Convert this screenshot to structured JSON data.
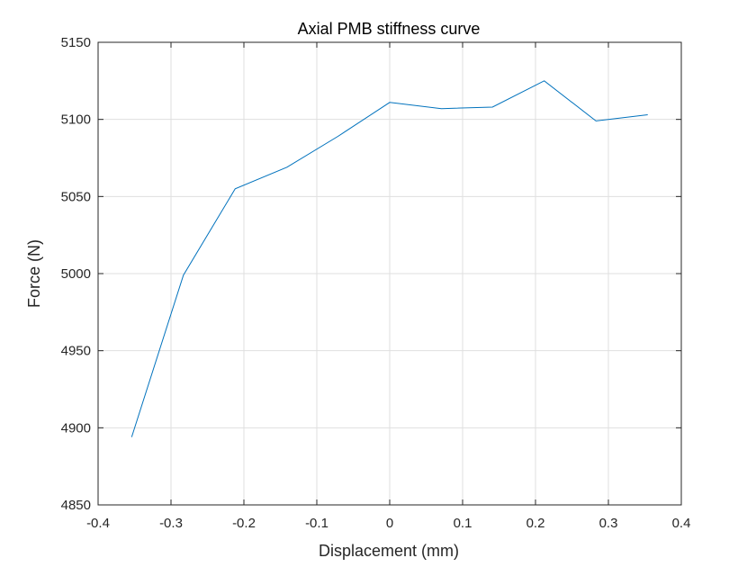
{
  "chart_data": {
    "type": "line",
    "title": "Axial PMB stiffness curve",
    "xlabel": "Displacement (mm)",
    "ylabel": "Force (N)",
    "xlim": [
      -0.4,
      0.4
    ],
    "ylim": [
      4850,
      5150
    ],
    "xticks": [
      -0.4,
      -0.3,
      -0.2,
      -0.1,
      0,
      0.1,
      0.2,
      0.3,
      0.4
    ],
    "xtick_labels": [
      "-0.4",
      "-0.3",
      "-0.2",
      "-0.1",
      "0",
      "0.1",
      "0.2",
      "0.3",
      "0.4"
    ],
    "yticks": [
      4850,
      4900,
      4950,
      5000,
      5050,
      5100,
      5150
    ],
    "ytick_labels": [
      "4850",
      "4900",
      "4950",
      "5000",
      "5050",
      "5100",
      "5150"
    ],
    "grid": true,
    "series": [
      {
        "color": "#0072BD",
        "x": [
          -0.354,
          -0.283,
          -0.212,
          -0.141,
          -0.071,
          0,
          0.071,
          0.141,
          0.212,
          0.283,
          0.354
        ],
        "y": [
          4894,
          4999,
          5055,
          5069,
          5089,
          5111,
          5107,
          5108,
          5125,
          5099,
          5103
        ]
      }
    ]
  }
}
